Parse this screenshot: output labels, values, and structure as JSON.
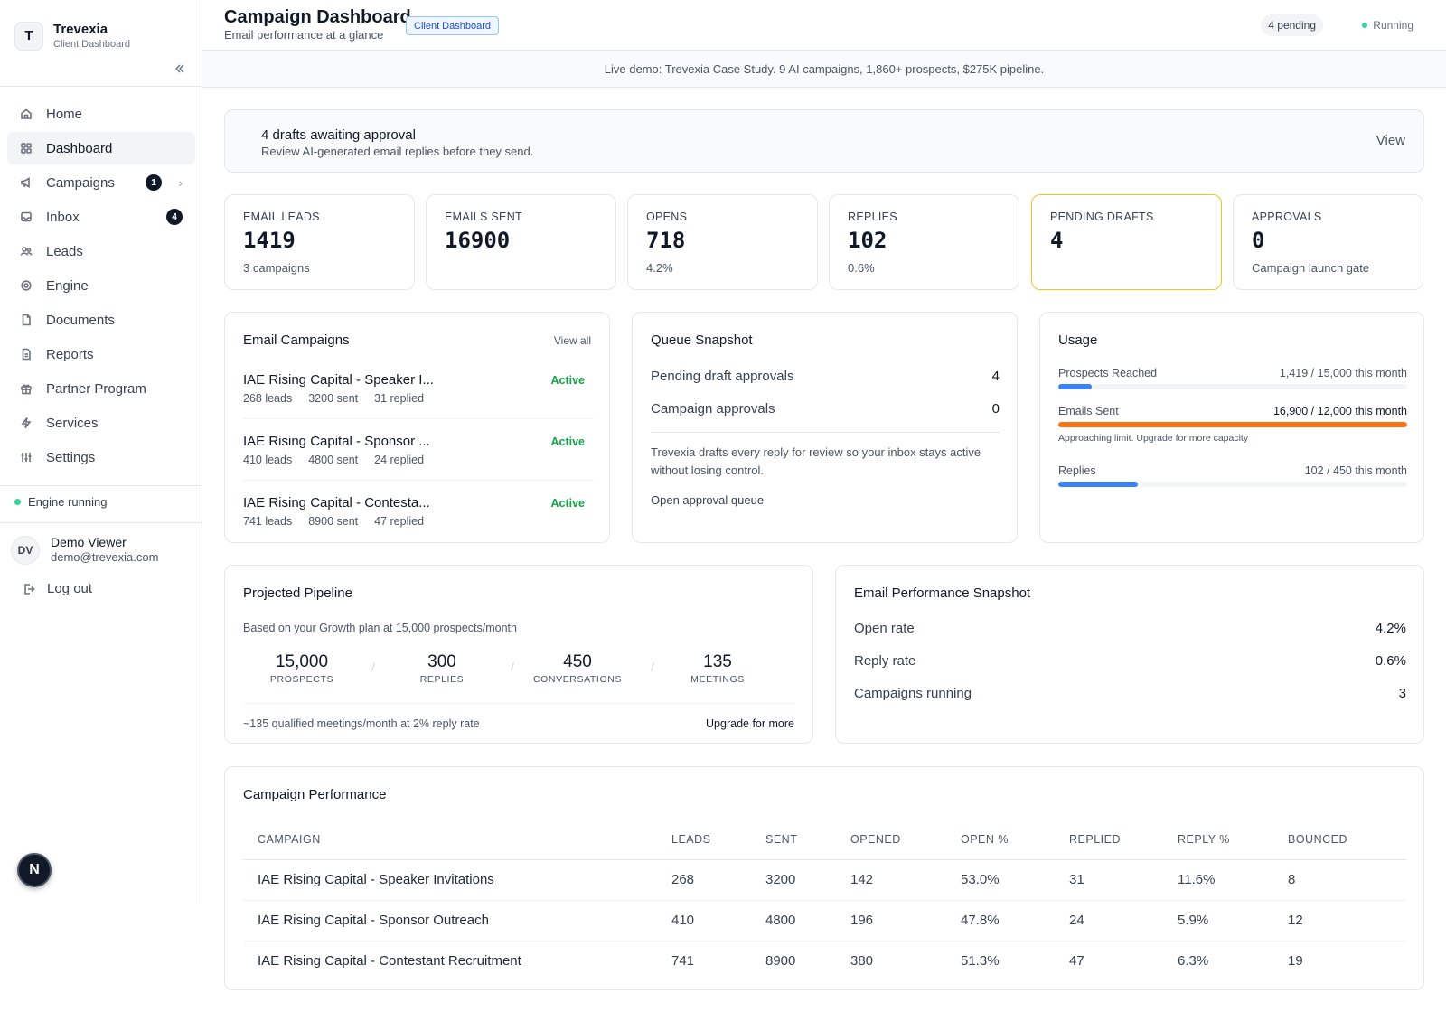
{
  "brand": {
    "initial": "T",
    "name": "Trevexia",
    "subtitle": "Client Dashboard"
  },
  "sidebar": {
    "items": [
      {
        "label": "Home",
        "icon": "home-icon"
      },
      {
        "label": "Dashboard",
        "icon": "dashboard-icon",
        "active": true
      },
      {
        "label": "Campaigns",
        "icon": "megaphone-icon",
        "badge": "1"
      },
      {
        "label": "Inbox",
        "icon": "inbox-icon",
        "badge": "4"
      },
      {
        "label": "Leads",
        "icon": "users-icon"
      },
      {
        "label": "Engine",
        "icon": "gear-icon"
      },
      {
        "label": "Documents",
        "icon": "document-icon"
      },
      {
        "label": "Reports",
        "icon": "report-icon"
      },
      {
        "label": "Partner Program",
        "icon": "gift-icon"
      },
      {
        "label": "Services",
        "icon": "bolt-icon"
      },
      {
        "label": "Settings",
        "icon": "sliders-icon"
      }
    ],
    "engine_status": "Engine running",
    "user": {
      "initials": "DV",
      "name": "Demo Viewer",
      "email": "demo@trevexia.com"
    },
    "logout": "Log out",
    "fab": "N"
  },
  "header": {
    "title": "Campaign Dashboard",
    "subtitle": "Email performance at a glance",
    "tag": "Client Dashboard",
    "pending": "4 pending",
    "status": "Running"
  },
  "banner": "Live demo: Trevexia Case Study. 9 AI campaigns, 1,860+ prospects, $275K pipeline.",
  "approval": {
    "title": "4 drafts awaiting approval",
    "subtitle": "Review AI-generated email replies before they send.",
    "action": "View"
  },
  "stats": [
    {
      "label": "EMAIL LEADS",
      "value": "1419",
      "note": "3 campaigns"
    },
    {
      "label": "EMAILS SENT",
      "value": "16900",
      "note": ""
    },
    {
      "label": "OPENS",
      "value": "718",
      "note": "4.2%"
    },
    {
      "label": "REPLIES",
      "value": "102",
      "note": "0.6%"
    },
    {
      "label": "PENDING DRAFTS",
      "value": "4",
      "note": ""
    },
    {
      "label": "APPROVALS",
      "value": "0",
      "note": "Campaign launch gate"
    }
  ],
  "email_campaigns": {
    "title": "Email Campaigns",
    "view_all": "View all",
    "items": [
      {
        "name": "IAE Rising Capital - Speaker I...",
        "leads": "268 leads",
        "sent": "3200 sent",
        "replied": "31 replied",
        "status": "Active"
      },
      {
        "name": "IAE Rising Capital - Sponsor ...",
        "leads": "410 leads",
        "sent": "4800 sent",
        "replied": "24 replied",
        "status": "Active"
      },
      {
        "name": "IAE Rising Capital - Contesta...",
        "leads": "741 leads",
        "sent": "8900 sent",
        "replied": "47 replied",
        "status": "Active"
      }
    ]
  },
  "queue": {
    "title": "Queue Snapshot",
    "rows": [
      {
        "label": "Pending draft approvals",
        "value": "4"
      },
      {
        "label": "Campaign approvals",
        "value": "0"
      }
    ],
    "description": "Trevexia drafts every reply for review so your inbox stays active without losing control.",
    "link": "Open approval queue"
  },
  "usage": {
    "title": "Usage",
    "rows": [
      {
        "label": "Prospects Reached",
        "value": "1,419 / 15,000 this month",
        "fraction": 0.095
      },
      {
        "label": "Emails Sent",
        "value": "16,900 / 12,000 this month",
        "fraction": 1.0,
        "warning": "Approaching limit. Upgrade for more capacity"
      },
      {
        "label": "Replies",
        "value": "102 / 450 this month",
        "fraction": 0.227
      }
    ]
  },
  "pipeline": {
    "title": "Projected Pipeline",
    "subtitle": "Based on your Growth plan at 15,000 prospects/month",
    "stages": [
      {
        "value": "15,000",
        "label": "PROSPECTS"
      },
      {
        "value": "300",
        "label": "REPLIES"
      },
      {
        "value": "450",
        "label": "CONVERSATIONS"
      },
      {
        "value": "135",
        "label": "MEETINGS"
      }
    ],
    "separator": "/",
    "footer": "~135 qualified meetings/month at 2% reply rate",
    "upgrade": "Upgrade for more"
  },
  "performance_snapshot": {
    "title": "Email Performance Snapshot",
    "rows": [
      {
        "label": "Open rate",
        "value": "4.2%"
      },
      {
        "label": "Reply rate",
        "value": "0.6%"
      },
      {
        "label": "Campaigns running",
        "value": "3"
      }
    ]
  },
  "campaign_performance": {
    "title": "Campaign Performance",
    "columns": [
      "CAMPAIGN",
      "LEADS",
      "SENT",
      "OPENED",
      "OPEN %",
      "REPLIED",
      "REPLY %",
      "BOUNCED"
    ],
    "rows": [
      [
        "IAE Rising Capital - Speaker Invitations",
        "268",
        "3200",
        "142",
        "53.0%",
        "31",
        "11.6%",
        "8"
      ],
      [
        "IAE Rising Capital - Sponsor Outreach",
        "410",
        "4800",
        "196",
        "47.8%",
        "24",
        "5.9%",
        "12"
      ],
      [
        "IAE Rising Capital - Contestant Recruitment",
        "741",
        "8900",
        "380",
        "51.3%",
        "47",
        "6.3%",
        "19"
      ]
    ]
  },
  "colors": {
    "accent_blue": "#3b82f6",
    "warning_orange": "#f97316",
    "active_green": "#16a34a",
    "highlight_border": "#fbbf24"
  }
}
